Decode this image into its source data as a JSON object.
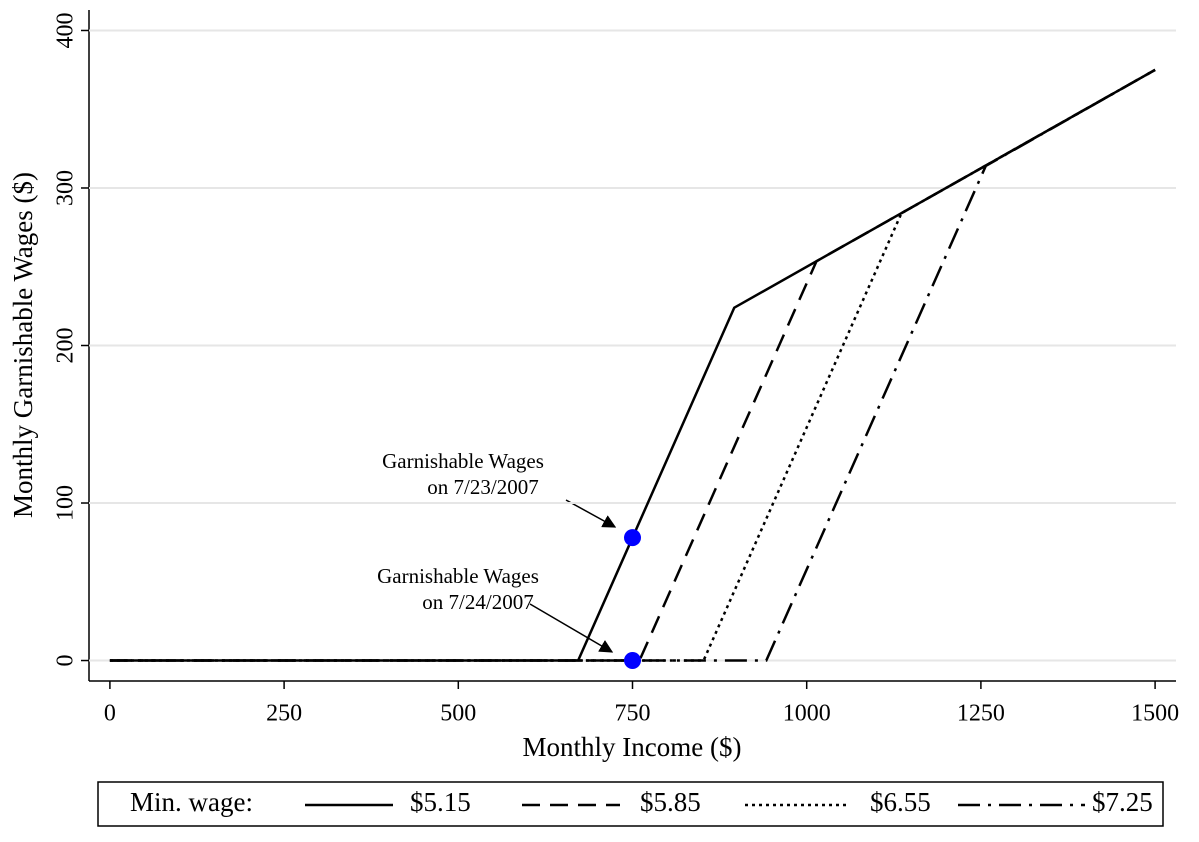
{
  "chart_data": {
    "type": "line",
    "x_label": "Monthly Income ($)",
    "y_label": "Monthly Garnishable Wages ($)",
    "xlim": [
      -30,
      1530
    ],
    "xticks": [
      0,
      250,
      500,
      750,
      1000,
      1250,
      1500
    ],
    "ylim": [
      -13,
      413
    ],
    "yticks": [
      0,
      100,
      200,
      300,
      400
    ],
    "grid": true,
    "series": [
      {
        "name": "$5.15",
        "color": "#000000",
        "style": "solid",
        "x": [
          0,
          672,
          896,
          1500
        ],
        "values": [
          0,
          0,
          224,
          375
        ]
      },
      {
        "name": "$5.85",
        "color": "#000000",
        "style": "dash",
        "x": [
          0,
          760,
          1014,
          1500
        ],
        "values": [
          0,
          0,
          253.5,
          375
        ]
      },
      {
        "name": "$6.55",
        "color": "#000000",
        "style": "dot",
        "x": [
          0,
          852,
          1136,
          1500
        ],
        "values": [
          0,
          0,
          284,
          375
        ]
      },
      {
        "name": "$7.25",
        "color": "#000000",
        "style": "dashdot",
        "x": [
          0,
          942,
          1257,
          1500
        ],
        "values": [
          0,
          0,
          314,
          375
        ]
      }
    ],
    "points": {
      "color": "#0000ff",
      "x": [
        750,
        750
      ],
      "values": [
        78,
        0
      ]
    },
    "annotations": [
      {
        "lines": [
          "Garnishable Wages",
          "on 7/23/2007"
        ]
      },
      {
        "lines": [
          "Garnishable Wages",
          "on 7/24/2007"
        ]
      }
    ],
    "legend_title": "Min. wage:",
    "legend_position": "bottom"
  }
}
